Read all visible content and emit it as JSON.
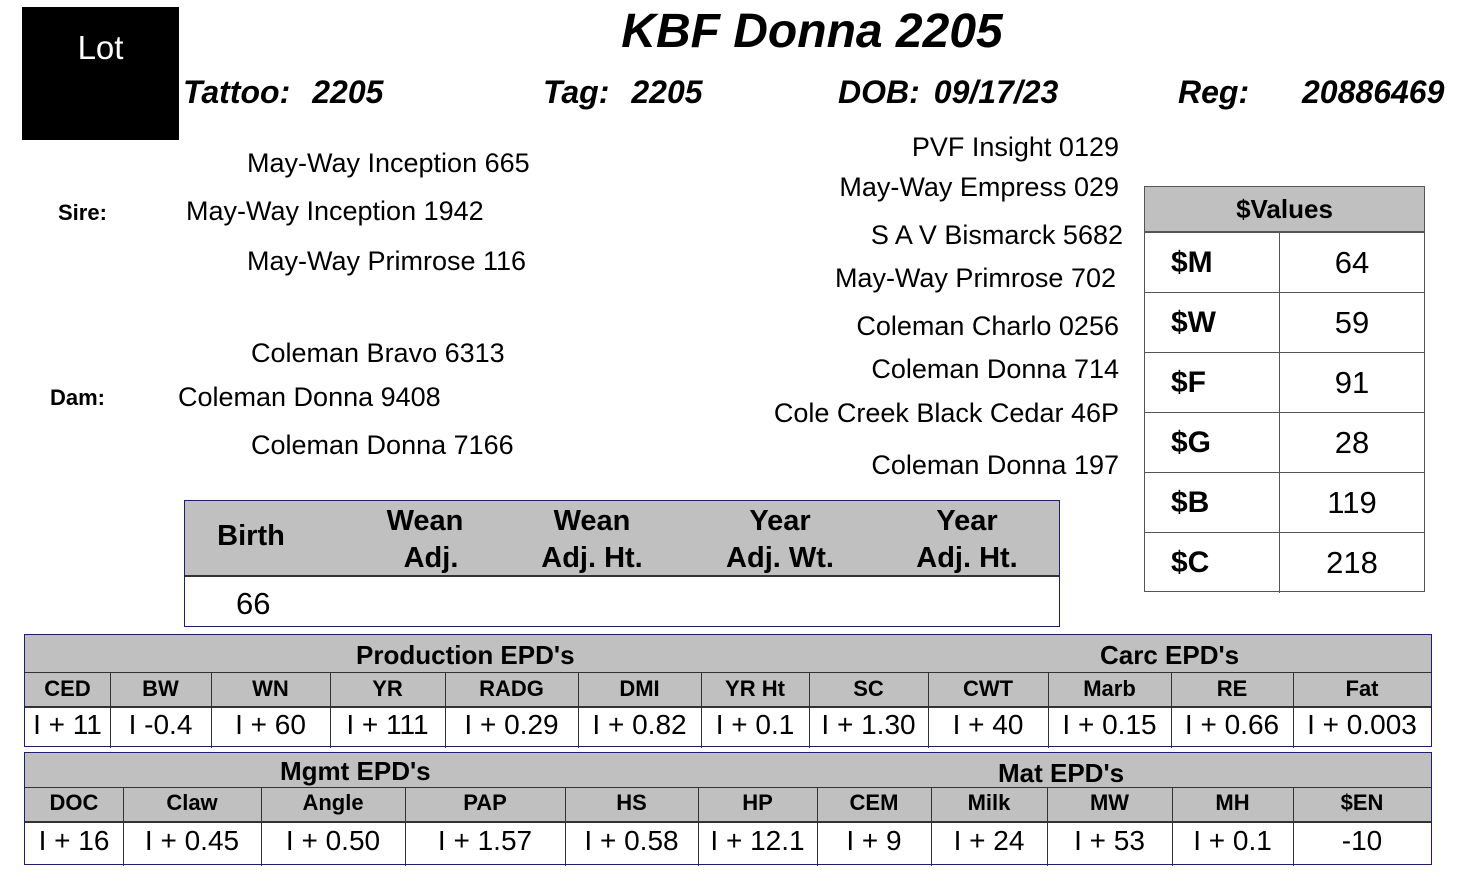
{
  "lot_label": "Lot",
  "title": "KBF Donna 2205",
  "header": {
    "tattoo_label": "Tattoo:",
    "tattoo": "2205",
    "tag_label": "Tag:",
    "tag": "2205",
    "dob_label": "DOB:",
    "dob": "09/17/23",
    "reg_label": "Reg:",
    "reg": "20886469"
  },
  "pedigree": {
    "sire_label": "Sire:",
    "dam_label": "Dam:",
    "sire": "May-Way Inception 1942",
    "sire_sire": "May-Way Inception 665",
    "sire_dam": "May-Way Primrose 116",
    "dam": "Coleman Donna 9408",
    "dam_sire": "Coleman Bravo 6313",
    "dam_dam": "Coleman Donna  7166",
    "sss": "PVF Insight 0129",
    "ssd": "May-Way Empress 029",
    "sds": "S A V Bismarck 5682",
    "sdd": "May-Way Primrose 702",
    "dss": "Coleman Charlo 0256",
    "dsd": "Coleman Donna  714",
    "dds": "Cole Creek Black Cedar 46P",
    "ddd": "Coleman Donna  197"
  },
  "values": {
    "title": "$Values",
    "rows": [
      {
        "label": "$M",
        "value": "64"
      },
      {
        "label": "$W",
        "value": "59"
      },
      {
        "label": "$F",
        "value": "91"
      },
      {
        "label": "$G",
        "value": "28"
      },
      {
        "label": "$B",
        "value": "119"
      },
      {
        "label": "$C",
        "value": "218"
      }
    ]
  },
  "performance": {
    "birth_label": "Birth",
    "wean_adj_1": "Wean",
    "wean_adj_2": "Adj.",
    "wean_ht_1": "Wean",
    "wean_ht_2": "Adj. Ht.",
    "year_wt_1": "Year",
    "year_wt_2": "Adj. Wt.",
    "year_ht_1": "Year",
    "year_ht_2": "Adj. Ht.",
    "birth_value": "66"
  },
  "production": {
    "section_label": "Production EPD's",
    "carc_label": "Carc EPD's",
    "headers": [
      "CED",
      "BW",
      "WN",
      "YR",
      "RADG",
      "DMI",
      "YR Ht",
      "SC",
      "CWT",
      "Marb",
      "RE",
      "Fat"
    ],
    "values": [
      "I + 11",
      "I -0.4",
      "I + 60",
      "I + 111",
      "I + 0.29",
      "I + 0.82",
      "I + 0.1",
      "I + 1.30",
      "I + 40",
      "I + 0.15",
      "I + 0.66",
      "I + 0.003"
    ]
  },
  "mgmt": {
    "section_label": "Mgmt EPD's",
    "mat_label": "Mat EPD's",
    "headers": [
      "DOC",
      "Claw",
      "Angle",
      "PAP",
      "HS",
      "HP",
      "CEM",
      "Milk",
      "MW",
      "MH",
      "$EN"
    ],
    "values": [
      "I + 16",
      "I + 0.45",
      "I + 0.50",
      "I + 1.57",
      "I + 0.58",
      "I + 12.1",
      "I + 9",
      "I + 24",
      "I + 53",
      "I + 0.1",
      "-10"
    ]
  }
}
